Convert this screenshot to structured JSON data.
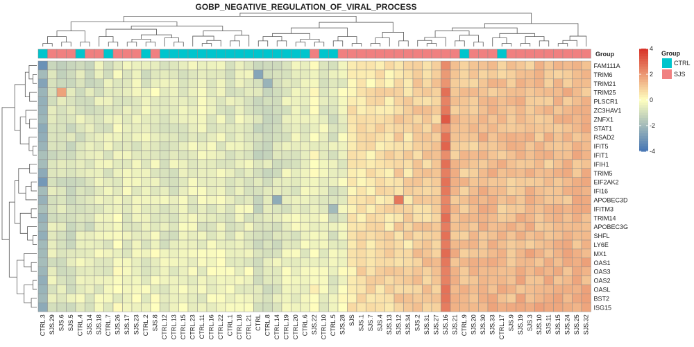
{
  "chart_data": {
    "type": "heatmap",
    "title": "GOBP_NEGATIVE_REGULATION_OF_VIRAL_PROCESS",
    "columns": [
      "CTRL.3",
      "SJS.29",
      "SJS.6",
      "SJS.5",
      "CTRL.4",
      "SJS.14",
      "SJS.18",
      "CTRL.7",
      "SJS.26",
      "SJS.17",
      "SJS.23",
      "CTRL.2",
      "SJS.8",
      "CTRL.12",
      "CTRL.13",
      "CTRL.15",
      "CTRL.23",
      "CTRL.11",
      "CTRL.16",
      "CTRL.22",
      "CTRL.1",
      "CTRL.18",
      "CTRL.21",
      "CTRL",
      "CTRL.8",
      "CTRL.14",
      "CTRL.19",
      "CTRL.20",
      "CTRL.6",
      "SJS.22",
      "CTRL.10",
      "CTRL.5",
      "SJS.28",
      "SJS",
      "SJS.1",
      "SJS.7",
      "SJS.4",
      "SJS.13",
      "SJS.12",
      "SJS.34",
      "SJS.2",
      "SJS.31",
      "SJS.27",
      "SJS.16",
      "SJS.21",
      "CTRL.9",
      "SJS.20",
      "SJS.30",
      "SJS.33",
      "CTRL.17",
      "SJS.9",
      "SJS.19",
      "SJS.3",
      "SJS.10",
      "SJS.11",
      "SJS.15",
      "SJS.24",
      "SJS.25",
      "SJS.32"
    ],
    "groups": [
      "CTRL",
      "SJS",
      "SJS",
      "SJS",
      "CTRL",
      "SJS",
      "SJS",
      "CTRL",
      "SJS",
      "SJS",
      "SJS",
      "CTRL",
      "SJS",
      "CTRL",
      "CTRL",
      "CTRL",
      "CTRL",
      "CTRL",
      "CTRL",
      "CTRL",
      "CTRL",
      "CTRL",
      "CTRL",
      "CTRL",
      "CTRL",
      "CTRL",
      "CTRL",
      "CTRL",
      "CTRL",
      "SJS",
      "CTRL",
      "CTRL",
      "SJS",
      "SJS",
      "SJS",
      "SJS",
      "SJS",
      "SJS",
      "SJS",
      "SJS",
      "SJS",
      "SJS",
      "SJS",
      "SJS",
      "SJS",
      "CTRL",
      "SJS",
      "SJS",
      "SJS",
      "CTRL",
      "SJS",
      "SJS",
      "SJS",
      "SJS",
      "SJS",
      "SJS",
      "SJS",
      "SJS",
      "SJS"
    ],
    "rows": [
      "FAM111A",
      "TRIM6",
      "TRIM21",
      "TRIM25",
      "PLSCR1",
      "ZC3HAV1",
      "ZNFX1",
      "STAT1",
      "RSAD2",
      "IFIT5",
      "IFIT1",
      "IFIH1",
      "TRIM5",
      "EIF2AK2",
      "IFI16",
      "APOBEC3D",
      "IFITM3",
      "TRIM14",
      "APOBEC3G",
      "SHFL",
      "LY6E",
      "MX1",
      "OAS1",
      "OAS3",
      "OAS2",
      "OASL",
      "BST2",
      "ISG15"
    ],
    "annotation_label": "Group",
    "legend": {
      "title": "Group",
      "entries": [
        {
          "name": "CTRL",
          "color": "#00C5CD"
        },
        {
          "name": "SJS",
          "color": "#F08080"
        }
      ]
    },
    "colorbar": {
      "min": -4,
      "max": 4,
      "ticks": [
        4,
        2,
        0,
        -2,
        -4
      ],
      "low": "#4575B4",
      "mid": "#FFFFBF",
      "high": "#D73027"
    },
    "base_values": [
      -2.2,
      -0.8,
      -0.9,
      -0.9,
      -0.7,
      -0.8,
      -0.6,
      -0.6,
      -0.4,
      -0.5,
      -0.5,
      -0.6,
      -0.4,
      -0.6,
      -0.6,
      -0.5,
      -0.5,
      -0.5,
      -0.5,
      -0.5,
      -0.6,
      -0.5,
      -0.5,
      -1.0,
      -0.9,
      -0.8,
      -0.6,
      -0.5,
      -0.5,
      -0.2,
      -0.5,
      -0.7,
      -0.4,
      0.4,
      0.5,
      0.5,
      0.6,
      0.6,
      0.8,
      0.7,
      0.9,
      0.9,
      1.0,
      2.4,
      1.2,
      1.1,
      1.1,
      1.3,
      1.3,
      1.2,
      1.2,
      1.3,
      1.3,
      1.3,
      1.2,
      1.3,
      1.3,
      1.4,
      1.3
    ],
    "notable_cells": [
      {
        "row": "FAM111A",
        "col": "CTRL.3",
        "value": -3.2
      },
      {
        "row": "EIF2AK2",
        "col": "CTRL.3",
        "value": -3.0
      },
      {
        "row": "TRIM6",
        "col": "CTRL",
        "value": -2.6
      },
      {
        "row": "TRIM21",
        "col": "CTRL.8",
        "value": -2.2
      },
      {
        "row": "APOBEC3D",
        "col": "CTRL.14",
        "value": -2.4
      },
      {
        "row": "IFITM3",
        "col": "CTRL.5",
        "value": -2.0
      },
      {
        "row": "TRIM25",
        "col": "SJS.6",
        "value": 1.8
      },
      {
        "row": "APOBEC3D",
        "col": "SJS.12",
        "value": 2.6
      },
      {
        "row": "ZNFX1",
        "col": "SJS.16",
        "value": 3.2
      },
      {
        "row": "IFIT5",
        "col": "SJS.16",
        "value": 3.0
      }
    ]
  }
}
